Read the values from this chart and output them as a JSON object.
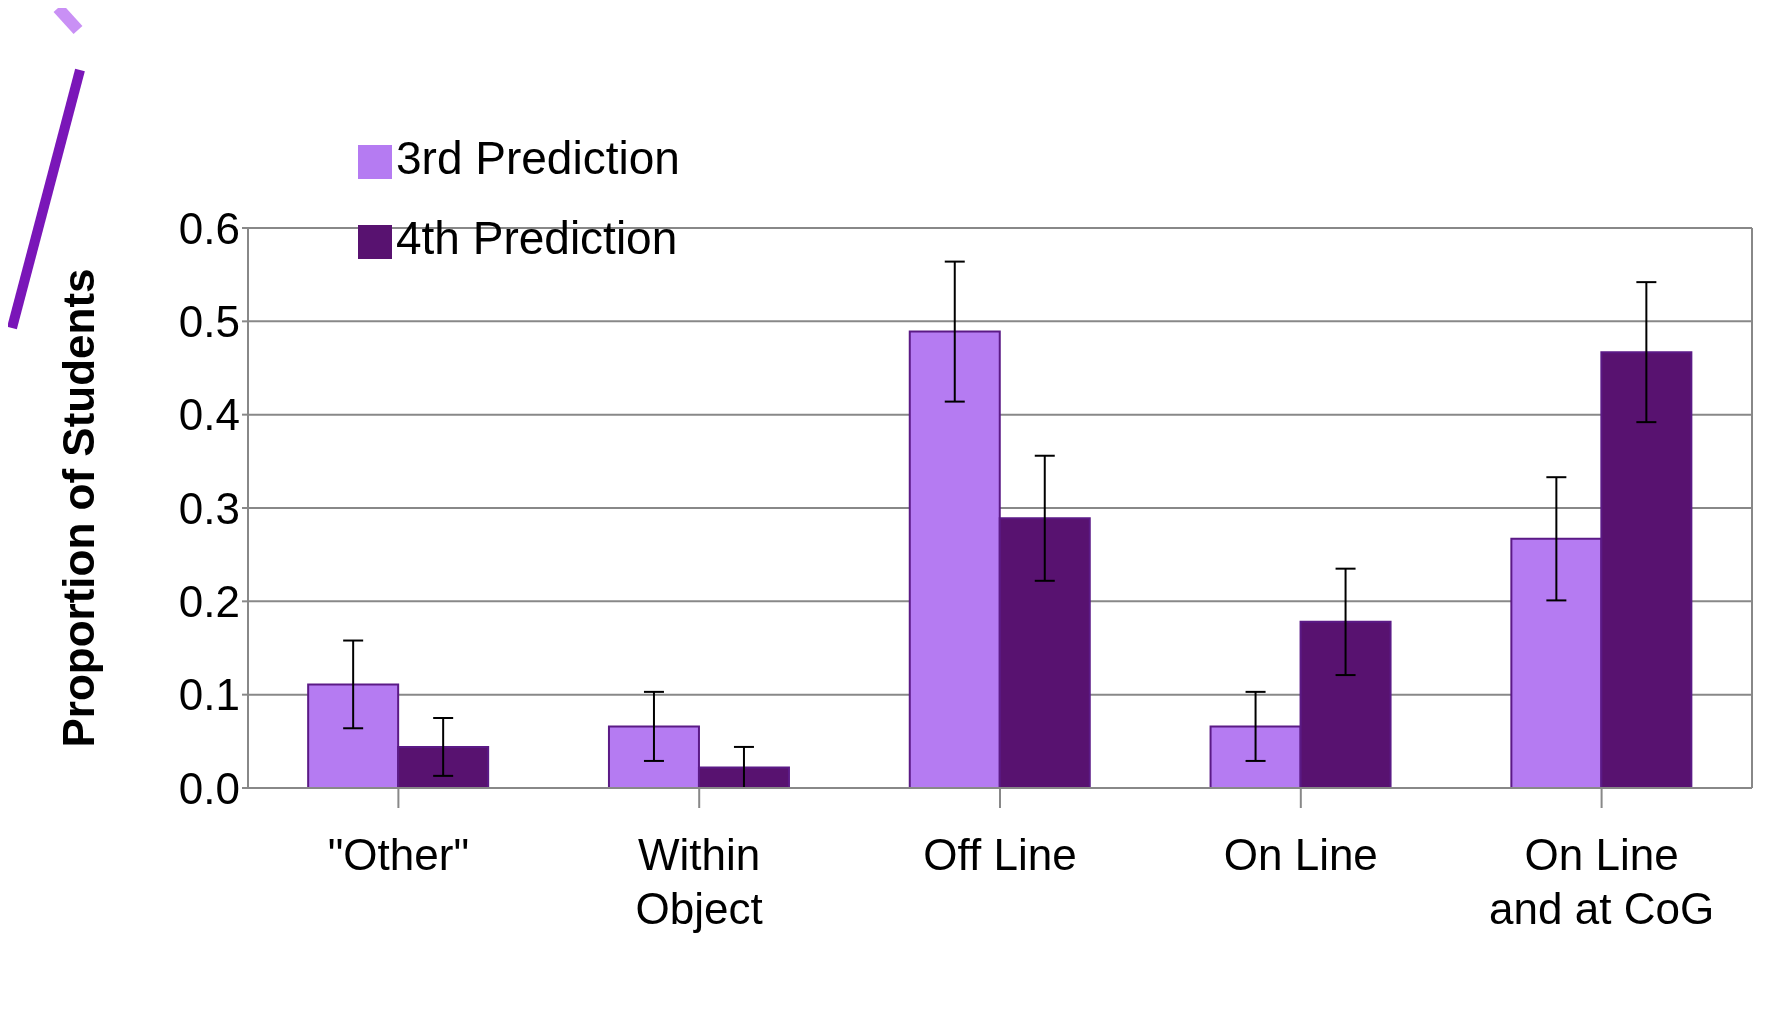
{
  "chart_data": {
    "type": "bar",
    "ylabel": "Proportion of Students",
    "categories": [
      "\"Other\"",
      "Within Object",
      "Off Line",
      "On Line",
      "On Line and at CoG"
    ],
    "series": [
      {
        "name": "3rd Prediction",
        "color": "#b57bf2",
        "values": [
          0.111,
          0.066,
          0.489,
          0.066,
          0.267
        ],
        "errors": [
          0.047,
          0.037,
          0.075,
          0.037,
          0.066
        ]
      },
      {
        "name": "4th Prediction",
        "color": "#581270",
        "values": [
          0.044,
          0.022,
          0.289,
          0.178,
          0.467
        ],
        "errors": [
          0.031,
          0.022,
          0.067,
          0.057,
          0.075
        ]
      }
    ],
    "ylim": [
      0,
      0.6
    ],
    "yticks": [
      {
        "value": 0,
        "label": "0.0"
      },
      {
        "value": 0.1,
        "label": "0.1"
      },
      {
        "value": 0.2,
        "label": "0.2"
      },
      {
        "value": 0.3,
        "label": "0.3"
      },
      {
        "value": 0.4,
        "label": "0.4"
      },
      {
        "value": 0.5,
        "label": "0.5"
      },
      {
        "value": 0.6,
        "label": "0.6"
      }
    ],
    "grid": "y",
    "legend": "top left"
  }
}
